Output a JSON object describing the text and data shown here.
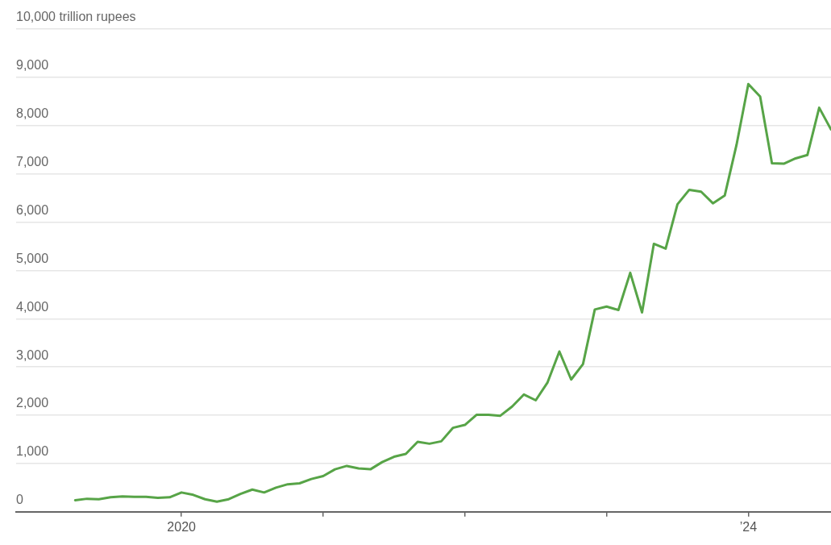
{
  "chart_data": {
    "type": "line",
    "color": "#57a447",
    "grid": "y",
    "xlim": [
      "2018-11",
      "2024-08"
    ],
    "xticks": [
      {
        "value": "2020-01",
        "label": "2020"
      },
      {
        "value": "2021-01",
        "label": null
      },
      {
        "value": "2022-01",
        "label": null
      },
      {
        "value": "2023-01",
        "label": null
      },
      {
        "value": "2024-01",
        "label": "’24"
      }
    ],
    "ylim": [
      0,
      10000
    ],
    "yticks": [
      0,
      {
        "value": 1000,
        "label": "1,000"
      },
      {
        "value": 2000,
        "label": "2,000"
      },
      {
        "value": 3000,
        "label": "3,000"
      },
      {
        "value": 4000,
        "label": "4,000"
      },
      {
        "value": 5000,
        "label": "5,000"
      },
      {
        "value": 6000,
        "label": "6,000"
      },
      {
        "value": 7000,
        "label": "7,000"
      },
      {
        "value": 8000,
        "label": "8,000"
      },
      {
        "value": 9000,
        "label": "9,000"
      },
      {
        "value": 10000,
        "label": "10,000 trillion rupees"
      }
    ],
    "x": [
      "2019-04",
      "2019-05",
      "2019-06",
      "2019-07",
      "2019-08",
      "2019-09",
      "2019-10",
      "2019-11",
      "2019-12",
      "2020-01",
      "2020-02",
      "2020-03",
      "2020-04",
      "2020-05",
      "2020-06",
      "2020-07",
      "2020-08",
      "2020-09",
      "2020-10",
      "2020-11",
      "2020-12",
      "2021-01",
      "2021-02",
      "2021-03",
      "2021-04",
      "2021-05",
      "2021-06",
      "2021-07",
      "2021-08",
      "2021-09",
      "2021-10",
      "2021-11",
      "2021-12",
      "2022-01",
      "2022-02",
      "2022-03",
      "2022-04",
      "2022-05",
      "2022-06",
      "2022-07",
      "2022-08",
      "2022-09",
      "2022-10",
      "2022-11",
      "2022-12",
      "2023-01",
      "2023-02",
      "2023-03",
      "2023-04",
      "2023-05",
      "2023-06",
      "2023-07",
      "2023-08",
      "2023-09",
      "2023-10",
      "2023-11",
      "2023-12",
      "2024-01",
      "2024-02",
      "2024-03",
      "2024-04",
      "2024-05",
      "2024-06",
      "2024-07",
      "2024-08"
    ],
    "values": [
      240,
      270,
      260,
      300,
      320,
      310,
      310,
      290,
      300,
      400,
      350,
      260,
      210,
      260,
      370,
      460,
      400,
      500,
      570,
      590,
      680,
      740,
      880,
      950,
      900,
      880,
      1030,
      1140,
      1200,
      1450,
      1410,
      1460,
      1740,
      1800,
      2010,
      2010,
      1990,
      2180,
      2430,
      2310,
      2680,
      3320,
      2740,
      3060,
      4190,
      4250,
      4180,
      4950,
      4130,
      5550,
      5450,
      6370,
      6670,
      6630,
      6390,
      6550,
      7600,
      8860,
      8600,
      7220,
      7210,
      7320,
      7390,
      8370,
      7920
    ]
  }
}
